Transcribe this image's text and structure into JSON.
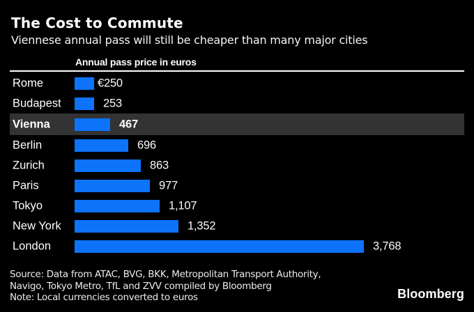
{
  "header": {
    "title": "The Cost to Commute",
    "subtitle": "Viennese annual pass will still be cheaper than many major cities"
  },
  "chart_data": {
    "type": "bar",
    "orientation": "horizontal",
    "title": "Annual pass price in euros",
    "categories": [
      "Rome",
      "Budapest",
      "Vienna",
      "Berlin",
      "Zurich",
      "Paris",
      "Tokyo",
      "New York",
      "London"
    ],
    "values": [
      250,
      253,
      467,
      696,
      863,
      977,
      1107,
      1352,
      3768
    ],
    "value_labels": [
      "€250",
      "253",
      "467",
      "696",
      "863",
      "977",
      "1,107",
      "1,352",
      "3,768"
    ],
    "highlighted_category": "Vienna",
    "xlim": [
      0,
      3768
    ],
    "unit": "euros",
    "grid": false,
    "legend": false,
    "bar_color": "#0d73fb",
    "highlight_row_color": "#333333"
  },
  "footer": {
    "source_line1": "Source: Data from ATAC, BVG, BKK, Metropolitan Transport Authority,",
    "source_line2": "Navigo, Tokyo Metro, TfL and ZVV compiled by Bloomberg",
    "note": "Note: Local currencies converted to euros",
    "brand": "Bloomberg"
  },
  "colors": {
    "background": "#000000",
    "bar": "#0d73fb",
    "highlight_row": "#333333",
    "text": "#ffffff"
  }
}
